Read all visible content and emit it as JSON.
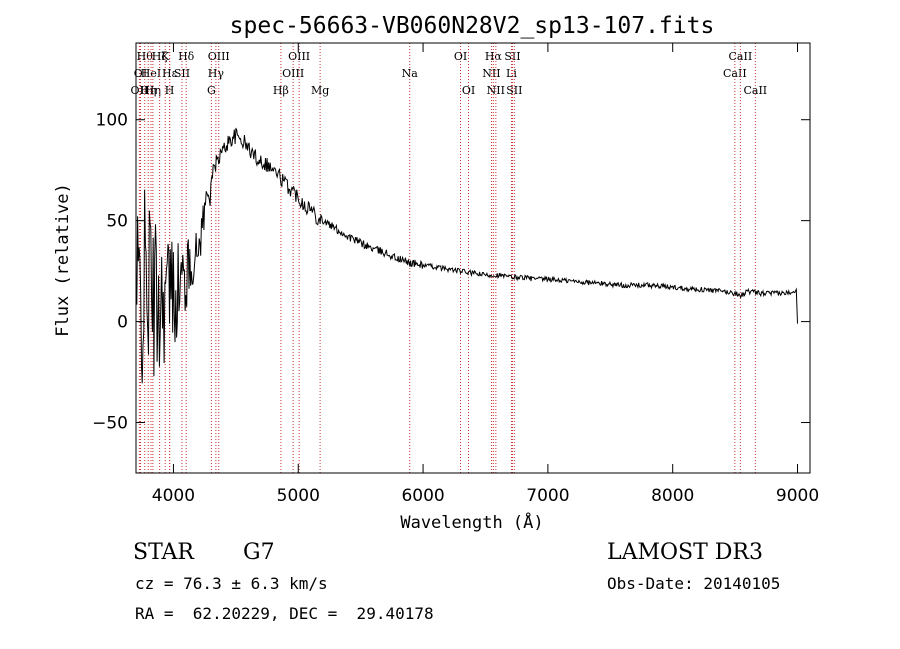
{
  "chart_data": {
    "type": "line",
    "title": "spec-56663-VB060N28V2_sp13-107.fits",
    "xlabel": "Wavelength (Å)",
    "ylabel": "Flux (relative)",
    "xlim": [
      3700,
      9100
    ],
    "ylim": [
      -75,
      138
    ],
    "xticks": [
      4000,
      5000,
      6000,
      7000,
      8000,
      9000
    ],
    "yticks": [
      -50,
      0,
      50,
      100
    ],
    "grid": false,
    "series": [
      {
        "name": "flux",
        "x": [
          3700,
          3750,
          3800,
          3850,
          3900,
          3950,
          4000,
          4050,
          4100,
          4150,
          4200,
          4250,
          4300,
          4350,
          4400,
          4450,
          4500,
          4550,
          4600,
          4650,
          4700,
          4750,
          4800,
          4850,
          4900,
          4950,
          5000,
          5050,
          5100,
          5150,
          5200,
          5300,
          5400,
          5500,
          5600,
          5700,
          5800,
          5900,
          6000,
          6100,
          6200,
          6300,
          6400,
          6500,
          6600,
          6700,
          6800,
          6900,
          7000,
          7200,
          7400,
          7600,
          7800,
          8000,
          8200,
          8400,
          8500,
          8550,
          8600,
          8700,
          8800,
          8900,
          8960,
          8990,
          9000
        ],
        "y": [
          5,
          15,
          20,
          10,
          12,
          16,
          15,
          18,
          22,
          28,
          36,
          55,
          70,
          80,
          85,
          90,
          92,
          90,
          86,
          82,
          80,
          78,
          75,
          72,
          68,
          65,
          62,
          58,
          56,
          52,
          50,
          46,
          42,
          39,
          36,
          34,
          31,
          29,
          28,
          27,
          26,
          25,
          24,
          23,
          23,
          22,
          22,
          21,
          21,
          20,
          19,
          18,
          18,
          17,
          16,
          15,
          14,
          13,
          15,
          14,
          14,
          14,
          15,
          16,
          -1
        ]
      }
    ],
    "lines": [
      {
        "wl": 3727,
        "label": "OII",
        "row": 3
      },
      {
        "wl": 3736,
        "label": "OI",
        "row": 2
      },
      {
        "wl": 3770,
        "label": "Hθ",
        "row": 1
      },
      {
        "wl": 3798,
        "label": "Hη",
        "row": 3
      },
      {
        "wl": 3820,
        "label": "HeI",
        "row": 2
      },
      {
        "wl": 3835,
        "label": "Hη",
        "row": 3
      },
      {
        "wl": 3889,
        "label": "Hζ",
        "row": 1
      },
      {
        "wl": 3934,
        "label": "K",
        "row": 1
      },
      {
        "wl": 3969,
        "label": "H",
        "row": 3
      },
      {
        "wl": 3970,
        "label": "Hε",
        "row": 2
      },
      {
        "wl": 4068,
        "label": "SII",
        "row": 2
      },
      {
        "wl": 4102,
        "label": "Hδ",
        "row": 1
      },
      {
        "wl": 4304,
        "label": "G",
        "row": 3
      },
      {
        "wl": 4340,
        "label": "Hγ",
        "row": 2
      },
      {
        "wl": 4363,
        "label": "OIII",
        "row": 1
      },
      {
        "wl": 4861,
        "label": "Hβ",
        "row": 3
      },
      {
        "wl": 4959,
        "label": "OIII",
        "row": 2
      },
      {
        "wl": 5007,
        "label": "OIII",
        "row": 1
      },
      {
        "wl": 5175,
        "label": "Mg",
        "row": 3
      },
      {
        "wl": 5893,
        "label": "Na",
        "row": 2
      },
      {
        "wl": 6300,
        "label": "OI",
        "row": 1
      },
      {
        "wl": 6364,
        "label": "OI",
        "row": 3
      },
      {
        "wl": 6548,
        "label": "NII",
        "row": 2
      },
      {
        "wl": 6563,
        "label": "Hα",
        "row": 1
      },
      {
        "wl": 6583,
        "label": "NII",
        "row": 3
      },
      {
        "wl": 6708,
        "label": "Li",
        "row": 2
      },
      {
        "wl": 6716,
        "label": "SII",
        "row": 1
      },
      {
        "wl": 6731,
        "label": "SII",
        "row": 3
      },
      {
        "wl": 8498,
        "label": "CaII",
        "row": 2
      },
      {
        "wl": 8542,
        "label": "CaII",
        "row": 1
      },
      {
        "wl": 8662,
        "label": "CaII",
        "row": 3
      }
    ]
  },
  "info": {
    "object_class": "STAR",
    "subclass": "G7",
    "survey": "LAMOST DR3",
    "redshift": "cz = 76.3 ± 6.3 km/s",
    "obs_date": "Obs-Date: 20140105",
    "coords": "RA =  62.20229, DEC =  29.40178"
  }
}
